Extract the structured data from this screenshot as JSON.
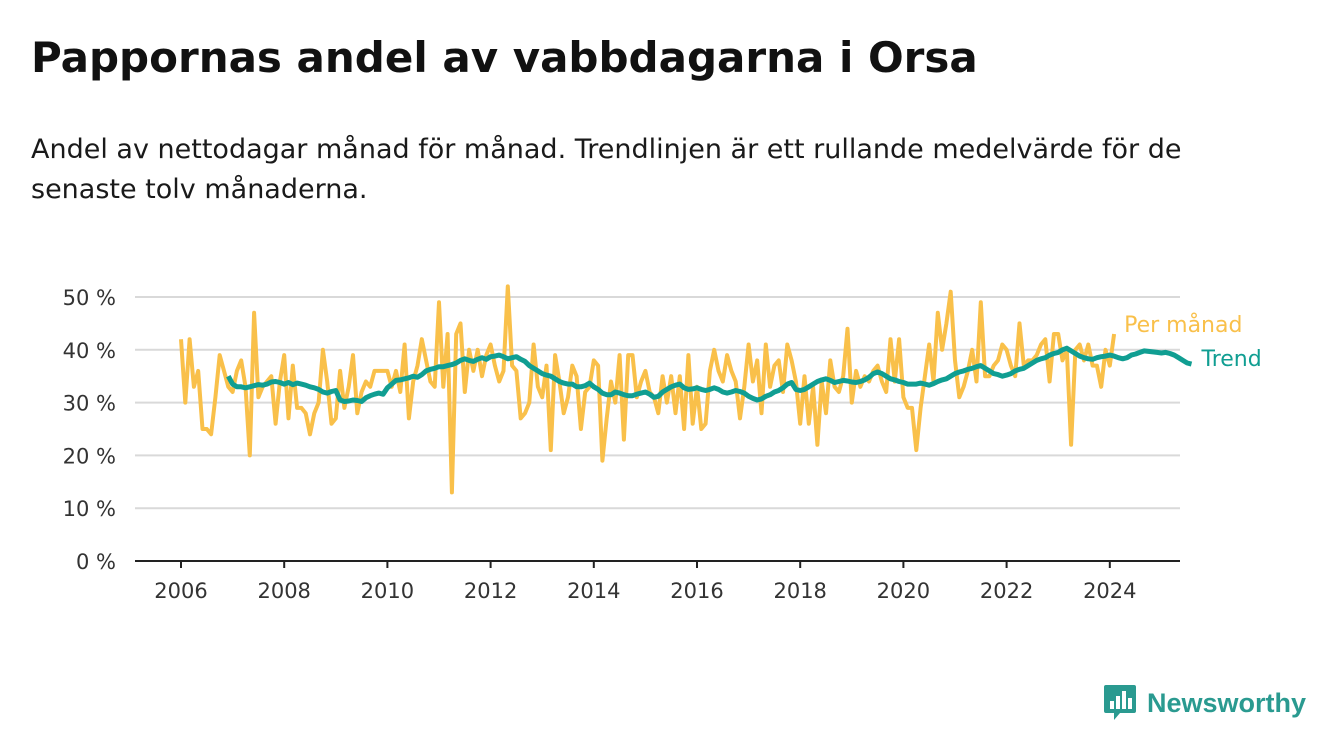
{
  "title": "Pappornas andel av vabbdagarna i Orsa",
  "subtitle": "Andel av nettodagar månad för månad. Trendlinjen är ett rullande medelvärde för de senaste tolv månaderna.",
  "brand": "Newsworthy",
  "colors": {
    "monthly": "#f9c04a",
    "trend": "#109e92",
    "grid": "#d9d9d9",
    "axis": "#222222",
    "brand": "#2a9a90"
  },
  "chart_data": {
    "type": "line",
    "ylim": [
      0,
      50
    ],
    "y_ticks": [
      0,
      10,
      20,
      30,
      40,
      50
    ],
    "y_tick_labels": [
      "0 %",
      "10 %",
      "20 %",
      "30 %",
      "40 %",
      "50 %"
    ],
    "x_ticks": [
      2006,
      2008,
      2010,
      2012,
      2014,
      2016,
      2018,
      2020,
      2022,
      2024
    ],
    "x_tick_labels": [
      "2006",
      "2008",
      "2010",
      "2012",
      "2014",
      "2016",
      "2018",
      "2020",
      "2022",
      "2024"
    ],
    "grid": "horizontal",
    "legend": "inline labels at right end of lines",
    "series": [
      {
        "name": "Per månad",
        "start": "2006-01",
        "values": [
          42,
          30,
          42,
          33,
          36,
          25,
          25,
          24,
          31,
          39,
          36,
          33,
          32,
          36,
          38,
          33,
          20,
          47,
          31,
          33,
          34,
          35,
          26,
          34,
          39,
          27,
          37,
          29,
          29,
          28,
          24,
          28,
          30,
          40,
          34,
          26,
          27,
          36,
          29,
          33,
          39,
          28,
          32,
          34,
          33,
          36,
          36,
          36,
          36,
          33,
          36,
          32,
          41,
          27,
          34,
          37,
          42,
          38,
          34,
          33,
          49,
          33,
          43,
          13,
          43,
          45,
          32,
          40,
          36,
          40,
          35,
          39,
          41,
          37,
          34,
          36,
          52,
          37,
          36,
          27,
          28,
          30,
          41,
          33,
          31,
          37,
          21,
          39,
          34,
          28,
          31,
          37,
          35,
          25,
          32,
          33,
          38,
          37,
          19,
          27,
          34,
          30,
          39,
          23,
          39,
          39,
          31,
          34,
          36,
          32,
          31,
          28,
          35,
          30,
          35,
          28,
          35,
          25,
          39,
          26,
          33,
          25,
          26,
          36,
          40,
          36,
          34,
          39,
          36,
          34,
          27,
          33,
          41,
          34,
          38,
          28,
          41,
          33,
          37,
          38,
          32,
          41,
          38,
          34,
          26,
          35,
          26,
          33,
          22,
          34,
          28,
          38,
          33,
          32,
          35,
          44,
          30,
          36,
          33,
          35,
          34,
          36,
          37,
          34,
          32,
          42,
          34,
          42,
          31,
          29,
          29,
          21,
          29,
          35,
          41,
          34,
          47,
          40,
          45,
          51,
          38,
          31,
          33,
          36,
          40,
          34,
          49,
          35,
          35,
          37,
          38,
          41,
          40,
          37,
          35,
          45,
          37,
          38,
          38,
          39,
          41,
          42,
          34,
          43,
          43,
          38,
          40,
          22,
          40,
          41,
          38,
          41,
          37,
          37,
          33,
          40,
          37,
          43
        ]
      },
      {
        "name": "Trend",
        "start": "2006-12",
        "values": [
          35,
          33.5,
          33,
          33,
          32.8,
          33,
          33.2,
          33.4,
          33.3,
          33.5,
          33.9,
          34,
          33.8,
          33.5,
          33.8,
          33.4,
          33.7,
          33.5,
          33.3,
          33,
          32.8,
          32.5,
          32,
          31.8,
          32.1,
          32.3,
          30.5,
          30.2,
          30.3,
          30.5,
          30.4,
          30.2,
          30.9,
          31.3,
          31.6,
          31.8,
          31.6,
          32.8,
          33.5,
          34.2,
          34.3,
          34.5,
          34.7,
          35,
          34.8,
          35.3,
          36,
          36.3,
          36.5,
          36.8,
          36.8,
          37,
          37.2,
          37.5,
          38,
          38.3,
          38,
          37.8,
          38.2,
          38.5,
          38.2,
          38.7,
          38.8,
          39,
          38.7,
          38.3,
          38.5,
          38.7,
          38.2,
          37.8,
          37,
          36.5,
          36,
          35.5,
          35.2,
          35,
          34.5,
          34,
          33.7,
          33.5,
          33.5,
          33,
          33,
          33.2,
          33.7,
          33,
          32.5,
          31.8,
          31.5,
          31.5,
          32,
          31.8,
          31.5,
          31.3,
          31.3,
          31.6,
          31.8,
          32,
          31.6,
          31,
          31.2,
          32,
          32.5,
          33,
          33.3,
          33.5,
          32.8,
          32.5,
          32.6,
          32.8,
          32.5,
          32.3,
          32.5,
          32.8,
          32.5,
          32,
          31.8,
          32,
          32.3,
          32.1,
          31.8,
          31.2,
          30.8,
          30.5,
          30.7,
          31.2,
          31.5,
          32,
          32.3,
          32.8,
          33.5,
          33.8,
          32.5,
          32.3,
          32.5,
          33,
          33.5,
          34,
          34.3,
          34.5,
          34.2,
          33.8,
          34,
          34.2,
          34.1,
          33.9,
          33.8,
          34,
          34.3,
          34.8,
          35.5,
          35.8,
          35.5,
          35,
          34.5,
          34.3,
          34,
          33.8,
          33.5,
          33.5,
          33.5,
          33.7,
          33.5,
          33.3,
          33.6,
          34,
          34.3,
          34.5,
          35,
          35.5,
          35.8,
          36,
          36.3,
          36.5,
          36.8,
          37,
          36.5,
          36,
          35.5,
          35.3,
          35,
          35.2,
          35.5,
          36,
          36.3,
          36.5,
          37,
          37.5,
          38,
          38.3,
          38.5,
          39,
          39.3,
          39.5,
          40,
          40.3,
          39.8,
          39.3,
          38.8,
          38.5,
          38.3,
          38.2,
          38.5,
          38.7,
          38.8,
          39,
          38.8,
          38.5,
          38.3,
          38.5,
          39,
          39.2,
          39.5,
          39.8,
          39.7,
          39.6,
          39.5,
          39.4,
          39.5,
          39.3,
          39,
          38.5,
          38,
          37.5,
          37.3
        ]
      }
    ]
  }
}
